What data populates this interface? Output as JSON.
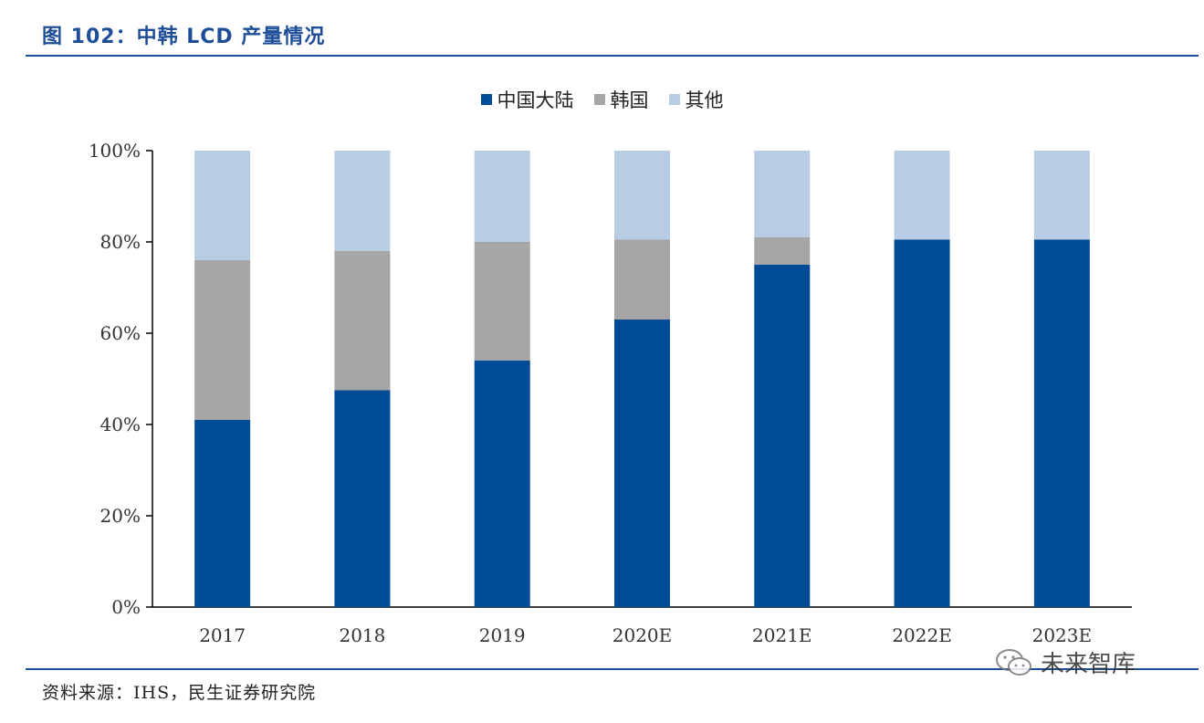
{
  "header": {
    "title": "图 102：中韩 LCD 产量情况"
  },
  "footer": {
    "source": "资料来源：IHS，民生证券研究院"
  },
  "watermark": {
    "text": "未来智库",
    "icon": "wechat-icon"
  },
  "colors": {
    "china": "#004c97",
    "korea": "#a6a6a6",
    "other": "#b8cce4",
    "accent": "#1f4e99"
  },
  "chart_data": {
    "type": "bar",
    "stacked": true,
    "categories": [
      "2017",
      "2018",
      "2019",
      "2020E",
      "2021E",
      "2022E",
      "2023E"
    ],
    "series": [
      {
        "name": "中国大陆",
        "values": [
          41,
          47.5,
          54,
          63,
          75,
          80.5,
          80.5
        ]
      },
      {
        "name": "韩国",
        "values": [
          35,
          30.5,
          26,
          17.5,
          6,
          0,
          0
        ]
      },
      {
        "name": "其他",
        "values": [
          24,
          22,
          20,
          19.5,
          19,
          19.5,
          19.5
        ]
      }
    ],
    "ylim": [
      0,
      100
    ],
    "yticks": [
      "0%",
      "20%",
      "40%",
      "60%",
      "80%",
      "100%"
    ],
    "ytick_values": [
      0,
      20,
      40,
      60,
      80,
      100
    ],
    "legend_position": "top-center",
    "grid": false
  }
}
